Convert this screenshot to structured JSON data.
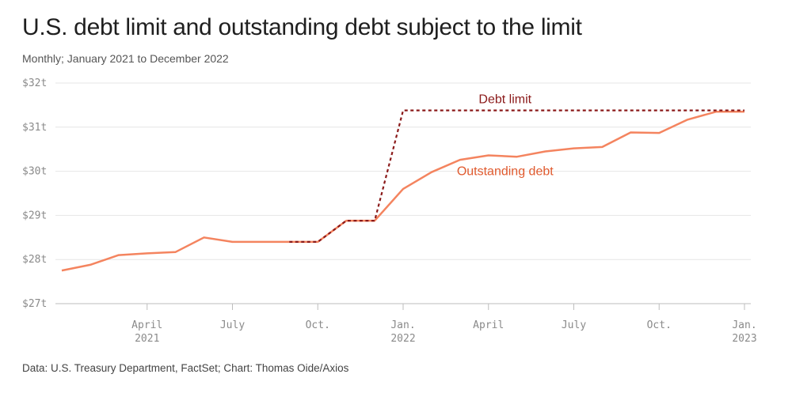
{
  "header": {
    "title": "U.S. debt limit and outstanding debt subject to the limit",
    "subtitle": "Monthly; January 2021 to December 2022"
  },
  "footer": {
    "source": "Data: U.S. Treasury Department, FactSet; Chart: Thomas Oide/Axios"
  },
  "chart_data": {
    "type": "line",
    "title": "U.S. debt limit and outstanding debt subject to the limit",
    "subtitle": "Monthly; January 2021 to December 2022",
    "xlabel": "",
    "ylabel": "",
    "ylim": [
      27,
      32
    ],
    "xlim": [
      "2021-01",
      "2023-01"
    ],
    "grid": true,
    "y_ticks": [
      {
        "value": 27,
        "label": "$27t"
      },
      {
        "value": 28,
        "label": "$28t"
      },
      {
        "value": 29,
        "label": "$29t"
      },
      {
        "value": 30,
        "label": "$30t"
      },
      {
        "value": 31,
        "label": "$31t"
      },
      {
        "value": 32,
        "label": "$32t"
      }
    ],
    "x_ticks": [
      {
        "value": "2021-04",
        "label": "April",
        "sublabel": "2021"
      },
      {
        "value": "2021-07",
        "label": "July",
        "sublabel": ""
      },
      {
        "value": "2021-10",
        "label": "Oct.",
        "sublabel": ""
      },
      {
        "value": "2022-01",
        "label": "Jan.",
        "sublabel": "2022"
      },
      {
        "value": "2022-04",
        "label": "April",
        "sublabel": ""
      },
      {
        "value": "2022-07",
        "label": "July",
        "sublabel": ""
      },
      {
        "value": "2022-10",
        "label": "Oct.",
        "sublabel": ""
      },
      {
        "value": "2023-01",
        "label": "Jan.",
        "sublabel": "2023"
      }
    ],
    "series": [
      {
        "name": "Outstanding debt",
        "color": "#f4845f",
        "style": "solid",
        "x": [
          "2021-01",
          "2021-02",
          "2021-03",
          "2021-04",
          "2021-05",
          "2021-06",
          "2021-07",
          "2021-08",
          "2021-09",
          "2021-10",
          "2021-11",
          "2021-12",
          "2022-01",
          "2022-02",
          "2022-03",
          "2022-04",
          "2022-05",
          "2022-06",
          "2022-07",
          "2022-08",
          "2022-09",
          "2022-10",
          "2022-11",
          "2022-12",
          "2023-01"
        ],
        "values": [
          27.75,
          27.88,
          28.1,
          28.14,
          28.17,
          28.5,
          28.4,
          28.4,
          28.4,
          28.4,
          28.88,
          28.88,
          29.6,
          29.98,
          30.26,
          30.36,
          30.33,
          30.45,
          30.52,
          30.55,
          30.88,
          30.87,
          31.17,
          31.35,
          31.35
        ]
      },
      {
        "name": "Debt limit",
        "color": "#8b1a1a",
        "style": "dashed",
        "x": [
          "2021-09",
          "2021-10",
          "2021-11",
          "2021-12",
          "2022-01",
          "2022-02",
          "2022-03",
          "2022-04",
          "2022-05",
          "2022-06",
          "2022-07",
          "2022-08",
          "2022-09",
          "2022-10",
          "2022-11",
          "2022-12",
          "2023-01"
        ],
        "values": [
          28.4,
          28.4,
          28.88,
          28.88,
          31.38,
          31.38,
          31.38,
          31.38,
          31.38,
          31.38,
          31.38,
          31.38,
          31.38,
          31.38,
          31.38,
          31.38,
          31.38
        ]
      }
    ],
    "annotations": [
      {
        "text": "Debt limit",
        "series": "Debt limit",
        "color": "#8b1a1a"
      },
      {
        "text": "Outstanding debt",
        "series": "Outstanding debt",
        "color": "#e05a2e"
      }
    ]
  }
}
